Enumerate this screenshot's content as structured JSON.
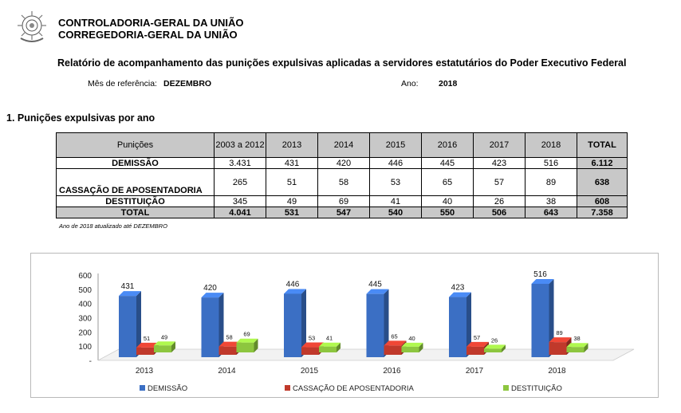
{
  "header": {
    "org_line1": "CONTROLADORIA-GERAL DA UNIÃO",
    "org_line2": "CORREGEDORIA-GERAL DA UNIÃO"
  },
  "report": {
    "title": "Relatório de acompanhamento das punições expulsivas aplicadas a servidores estatutários do Poder Executivo Federal",
    "ref_month_label": "Mês de referência:",
    "ref_month_value": "DEZEMBRO",
    "year_label": "Ano:",
    "year_value": "2018"
  },
  "section1": {
    "title": "1. Punições expulsivas por ano"
  },
  "table": {
    "headers": [
      "Punições",
      "2003 a 2012",
      "2013",
      "2014",
      "2015",
      "2016",
      "2017",
      "2018",
      "TOTAL"
    ],
    "rows": [
      {
        "label": "DEMISSÃO",
        "values": [
          "3.431",
          "431",
          "420",
          "446",
          "445",
          "423",
          "516"
        ],
        "total": "6.112"
      },
      {
        "label": "CASSAÇÃO DE APOSENTADORIA",
        "values": [
          "265",
          "51",
          "58",
          "53",
          "65",
          "57",
          "89"
        ],
        "total": "638"
      },
      {
        "label": "DESTITUIÇÃO",
        "values": [
          "345",
          "49",
          "69",
          "41",
          "40",
          "26",
          "38"
        ],
        "total": "608"
      },
      {
        "label": "TOTAL",
        "values": [
          "4.041",
          "531",
          "547",
          "540",
          "550",
          "506",
          "643"
        ],
        "total": "7.358"
      }
    ],
    "note": "Ano de 2018 atualizado até DEZEMBRO"
  },
  "chart_data": {
    "type": "bar",
    "categories": [
      "2013",
      "2014",
      "2015",
      "2016",
      "2017",
      "2018"
    ],
    "series": [
      {
        "name": "DEMISSÃO",
        "values": [
          431,
          420,
          446,
          445,
          423,
          516
        ],
        "color": "#3b6fc4"
      },
      {
        "name": "CASSAÇÃO DE APOSENTADORIA",
        "values": [
          51,
          58,
          53,
          65,
          57,
          89
        ],
        "color": "#c0392b"
      },
      {
        "name": "DESTITUIÇÃO",
        "values": [
          49,
          69,
          41,
          40,
          26,
          38
        ],
        "color": "#8dc63f"
      }
    ],
    "yticks": [
      "600",
      "500",
      "400",
      "300",
      "200",
      "100",
      "-"
    ],
    "ylim": [
      0,
      600
    ],
    "grid": false,
    "legend_position": "bottom"
  }
}
